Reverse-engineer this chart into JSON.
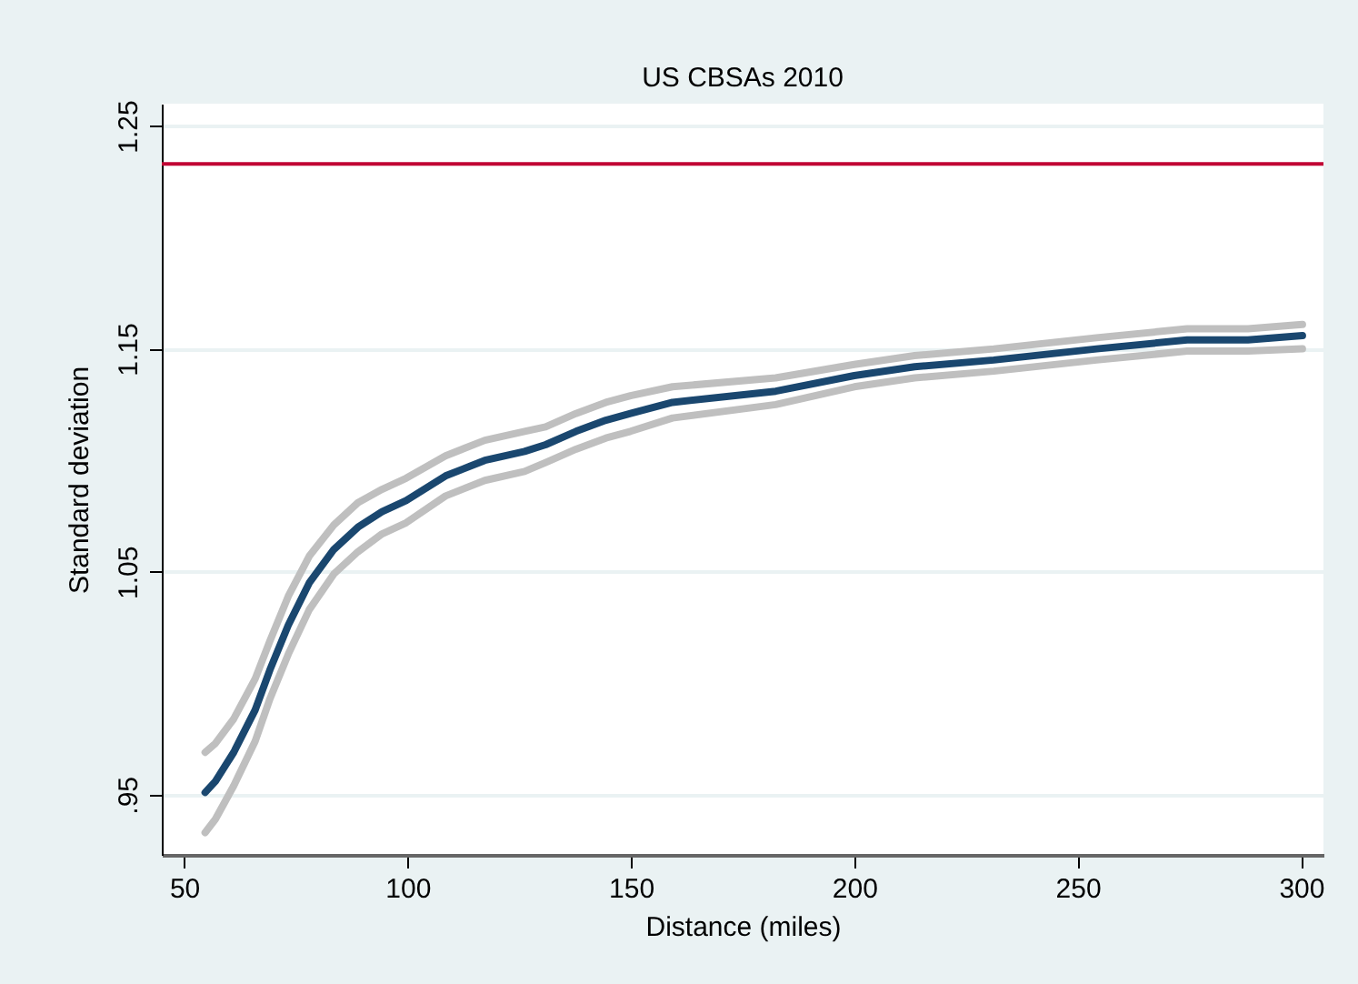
{
  "chart_data": {
    "type": "line",
    "title": "US CBSAs 2010",
    "xlabel": "Distance (miles)",
    "ylabel": "Standard deviation",
    "x": [
      54.7,
      57,
      61.1,
      65.9,
      69.2,
      73.3,
      78,
      83.5,
      88.9,
      94.3,
      99.7,
      108.5,
      117.3,
      126.2,
      130.9,
      137.7,
      144.4,
      149.9,
      159.3,
      182.4,
      200,
      213.5,
      231.2,
      254.2,
      274.5,
      288.1,
      300.3
    ],
    "series": [
      {
        "color": "#bfbfbf",
        "values": [
          0.933,
          0.939,
          0.954,
          0.974,
          0.993,
          1.013,
          1.033,
          1.049,
          1.059,
          1.067,
          1.072,
          1.084,
          1.091,
          1.095,
          1.099,
          1.105,
          1.11,
          1.113,
          1.119,
          1.125,
          1.133,
          1.137,
          1.14,
          1.145,
          1.149,
          1.149,
          1.15
        ]
      },
      {
        "color": "#bfbfbf",
        "values": [
          0.969,
          0.973,
          0.984,
          1.002,
          1.019,
          1.039,
          1.057,
          1.071,
          1.081,
          1.087,
          1.092,
          1.102,
          1.109,
          1.113,
          1.115,
          1.121,
          1.126,
          1.129,
          1.133,
          1.137,
          1.143,
          1.147,
          1.15,
          1.155,
          1.159,
          1.159,
          1.161
        ]
      },
      {
        "color": "#1a476f",
        "values": [
          0.951,
          0.956,
          0.969,
          0.988,
          1.006,
          1.026,
          1.045,
          1.06,
          1.07,
          1.077,
          1.082,
          1.093,
          1.1,
          1.104,
          1.107,
          1.113,
          1.118,
          1.121,
          1.126,
          1.131,
          1.138,
          1.142,
          1.145,
          1.15,
          1.154,
          1.154,
          1.156
        ]
      }
    ],
    "xlim": [
      45,
      305
    ],
    "xticks": [
      50,
      100,
      150,
      200,
      250,
      300
    ],
    "ylim": [
      0.923,
      1.26
    ],
    "yticks": [
      {
        "value": 0.95,
        "label": ".95"
      },
      1.05,
      1.15,
      1.25
    ],
    "ref_lines": [
      {
        "axis": "y",
        "value": 1.233,
        "color": "#c10534"
      }
    ],
    "grid": "y",
    "marker": "none",
    "line_style": "solid"
  }
}
